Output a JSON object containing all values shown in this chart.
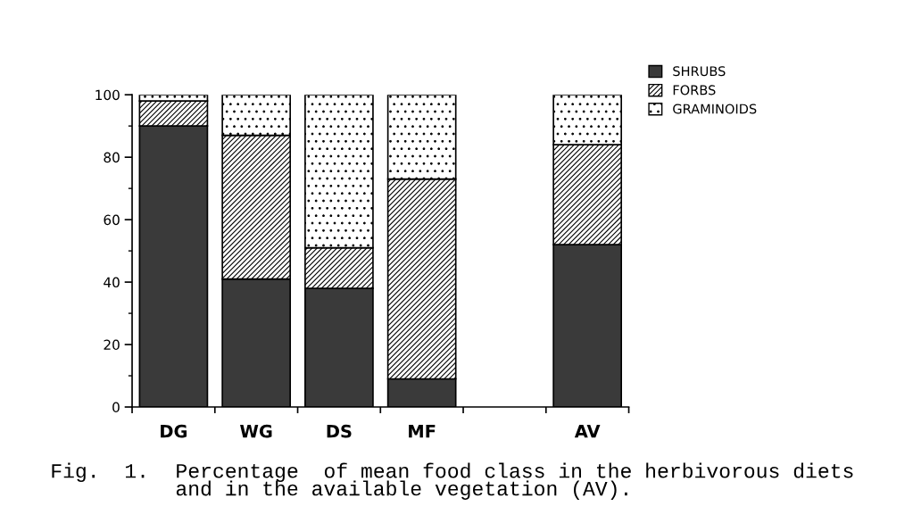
{
  "chart_data": {
    "type": "bar",
    "stacked": true,
    "categories": [
      "DG",
      "WG",
      "DS",
      "MF",
      null,
      "AV"
    ],
    "series": [
      {
        "name": "SHRUBS",
        "color": "#3a3a3a",
        "values": [
          90,
          41,
          38,
          9,
          null,
          52
        ]
      },
      {
        "name": "FORBS",
        "color": "#000000",
        "values": [
          8,
          46,
          13,
          64,
          null,
          32
        ]
      },
      {
        "name": "GRAMINOIDS",
        "color": "#000000",
        "values": [
          2,
          13,
          49,
          27,
          null,
          16
        ]
      }
    ],
    "ylim": [
      0,
      100
    ],
    "yticks": [
      0,
      {
        "value": 10,
        "label": null
      },
      20,
      {
        "value": 30,
        "label": null
      },
      40,
      {
        "value": 50,
        "label": null
      },
      60,
      {
        "value": 70,
        "label": null
      },
      80,
      {
        "value": 90,
        "label": null
      },
      100
    ],
    "grid": false,
    "legend": "top right",
    "annotations": [
      "Fig.  1.",
      "Percentage  of mean food class in the herbivorous diets\nand in the available vegetation (AV)."
    ]
  }
}
